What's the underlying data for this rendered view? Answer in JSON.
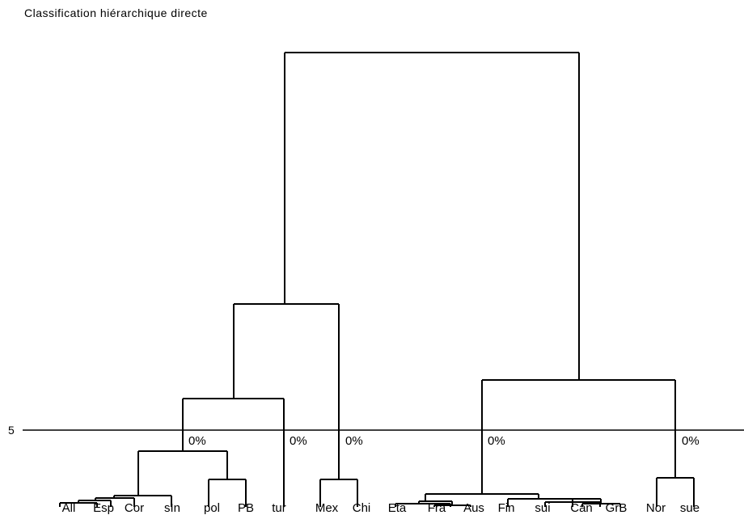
{
  "title": "Classification hiérarchique directe",
  "cut": {
    "value": "5"
  },
  "leaves": [
    "All",
    "Esp",
    "Cor",
    "sIn",
    "pol",
    "PB",
    "tur",
    "Mex",
    "Chi",
    "Eta",
    "Fra",
    "Aus",
    "Fin",
    "sui",
    "Can",
    "GrB",
    "Nor",
    "sue"
  ],
  "cluster_labels": [
    "0%",
    "0%",
    "0%",
    "0%",
    "0%"
  ],
  "colors": {
    "line": "#000000",
    "background": "#ffffff"
  }
}
